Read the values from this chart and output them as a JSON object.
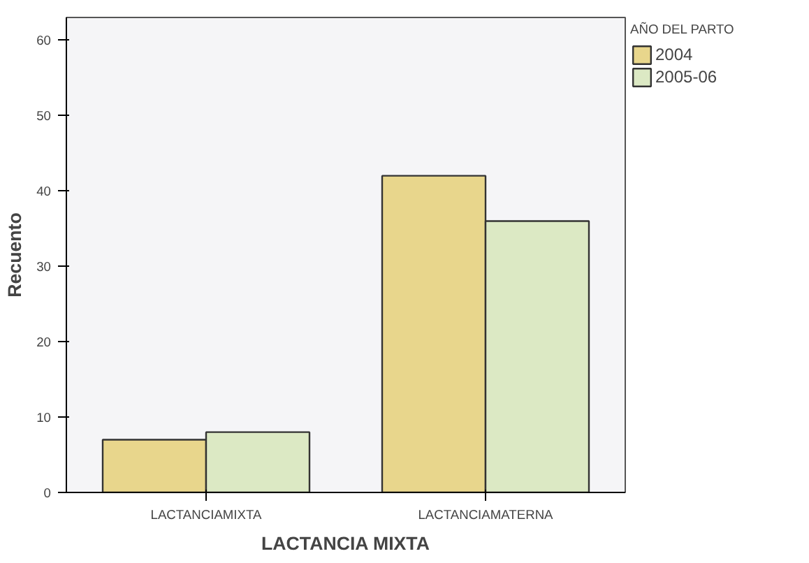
{
  "chart_data": {
    "type": "bar",
    "xlabel": "LACTANCIA MIXTA",
    "ylabel": "Recuento",
    "legend_title": "AÑO DEL PARTO",
    "categories": [
      "LACTANCIAMIXTA",
      "LACTANCIAMATERNA"
    ],
    "series": [
      {
        "name": "2004",
        "color": "#e8d68c",
        "values": [
          7,
          42
        ]
      },
      {
        "name": "2005-06",
        "color": "#dce9c4",
        "values": [
          8,
          36
        ]
      }
    ],
    "ylim": [
      0,
      63
    ],
    "yticks": [
      0,
      10,
      20,
      30,
      40,
      50,
      60
    ],
    "grid": false,
    "legend": "top right"
  }
}
